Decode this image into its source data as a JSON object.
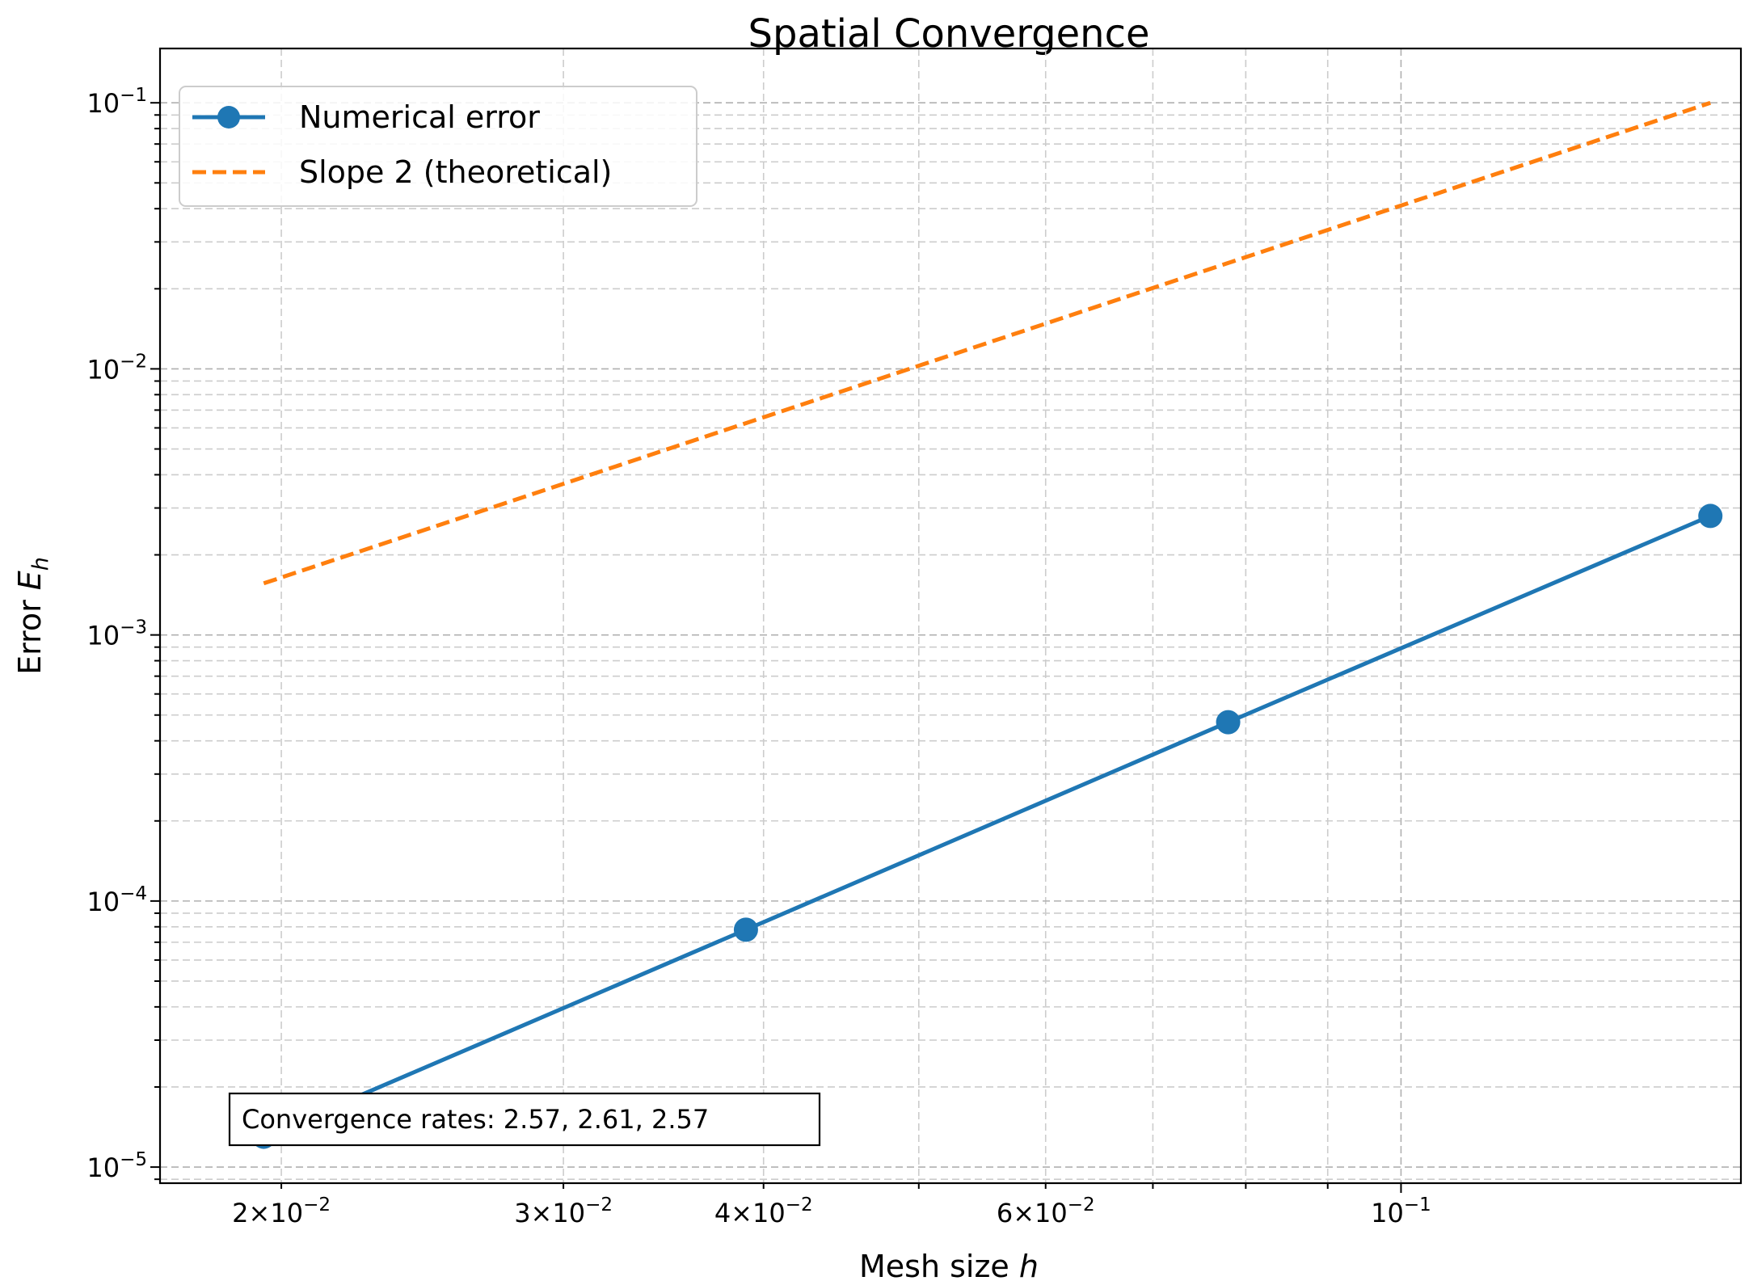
{
  "chart_data": {
    "type": "line",
    "title": "Spatial Convergence",
    "xlabel": "Mesh size",
    "xlabel_var": "h",
    "ylabel": "Error",
    "ylabel_var": "E",
    "ylabel_sub": "h",
    "xscale": "log",
    "yscale": "log",
    "xlim": [
      0.0168,
      0.163
    ],
    "ylim": [
      8.7e-06,
      0.16
    ],
    "grid": true,
    "legend_position": "upper-left",
    "x_ticks": [
      {
        "value": 0.02,
        "mantissa": "2",
        "exponent": "−2"
      },
      {
        "value": 0.03,
        "mantissa": "3",
        "exponent": "−2"
      },
      {
        "value": 0.04,
        "mantissa": "4",
        "exponent": "−2"
      },
      {
        "value": 0.06,
        "mantissa": "6",
        "exponent": "−2"
      },
      {
        "value": 0.1,
        "mantissa": "",
        "exponent": "−1"
      }
    ],
    "y_ticks": [
      {
        "value": 1e-05,
        "exponent": "−5"
      },
      {
        "value": 0.0001,
        "exponent": "−4"
      },
      {
        "value": 0.001,
        "exponent": "−3"
      },
      {
        "value": 0.01,
        "exponent": "−2"
      },
      {
        "value": 0.1,
        "exponent": "−1"
      }
    ],
    "series": [
      {
        "name": "Numerical error",
        "color": "#1f77b4",
        "style": "solid",
        "marker": "circle",
        "x": [
          0.0195,
          0.039,
          0.078,
          0.156
        ],
        "y": [
          1.3e-05,
          7.8e-05,
          0.00047,
          0.0028
        ]
      },
      {
        "name": "Slope 2 (theoretical)",
        "color": "#ff7f0e",
        "style": "dashed",
        "marker": "none",
        "x": [
          0.0195,
          0.039,
          0.078,
          0.156
        ],
        "y": [
          0.0015625,
          0.00625,
          0.025,
          0.1
        ]
      }
    ],
    "annotation": "Convergence rates: 2.57, 2.61, 2.57"
  }
}
